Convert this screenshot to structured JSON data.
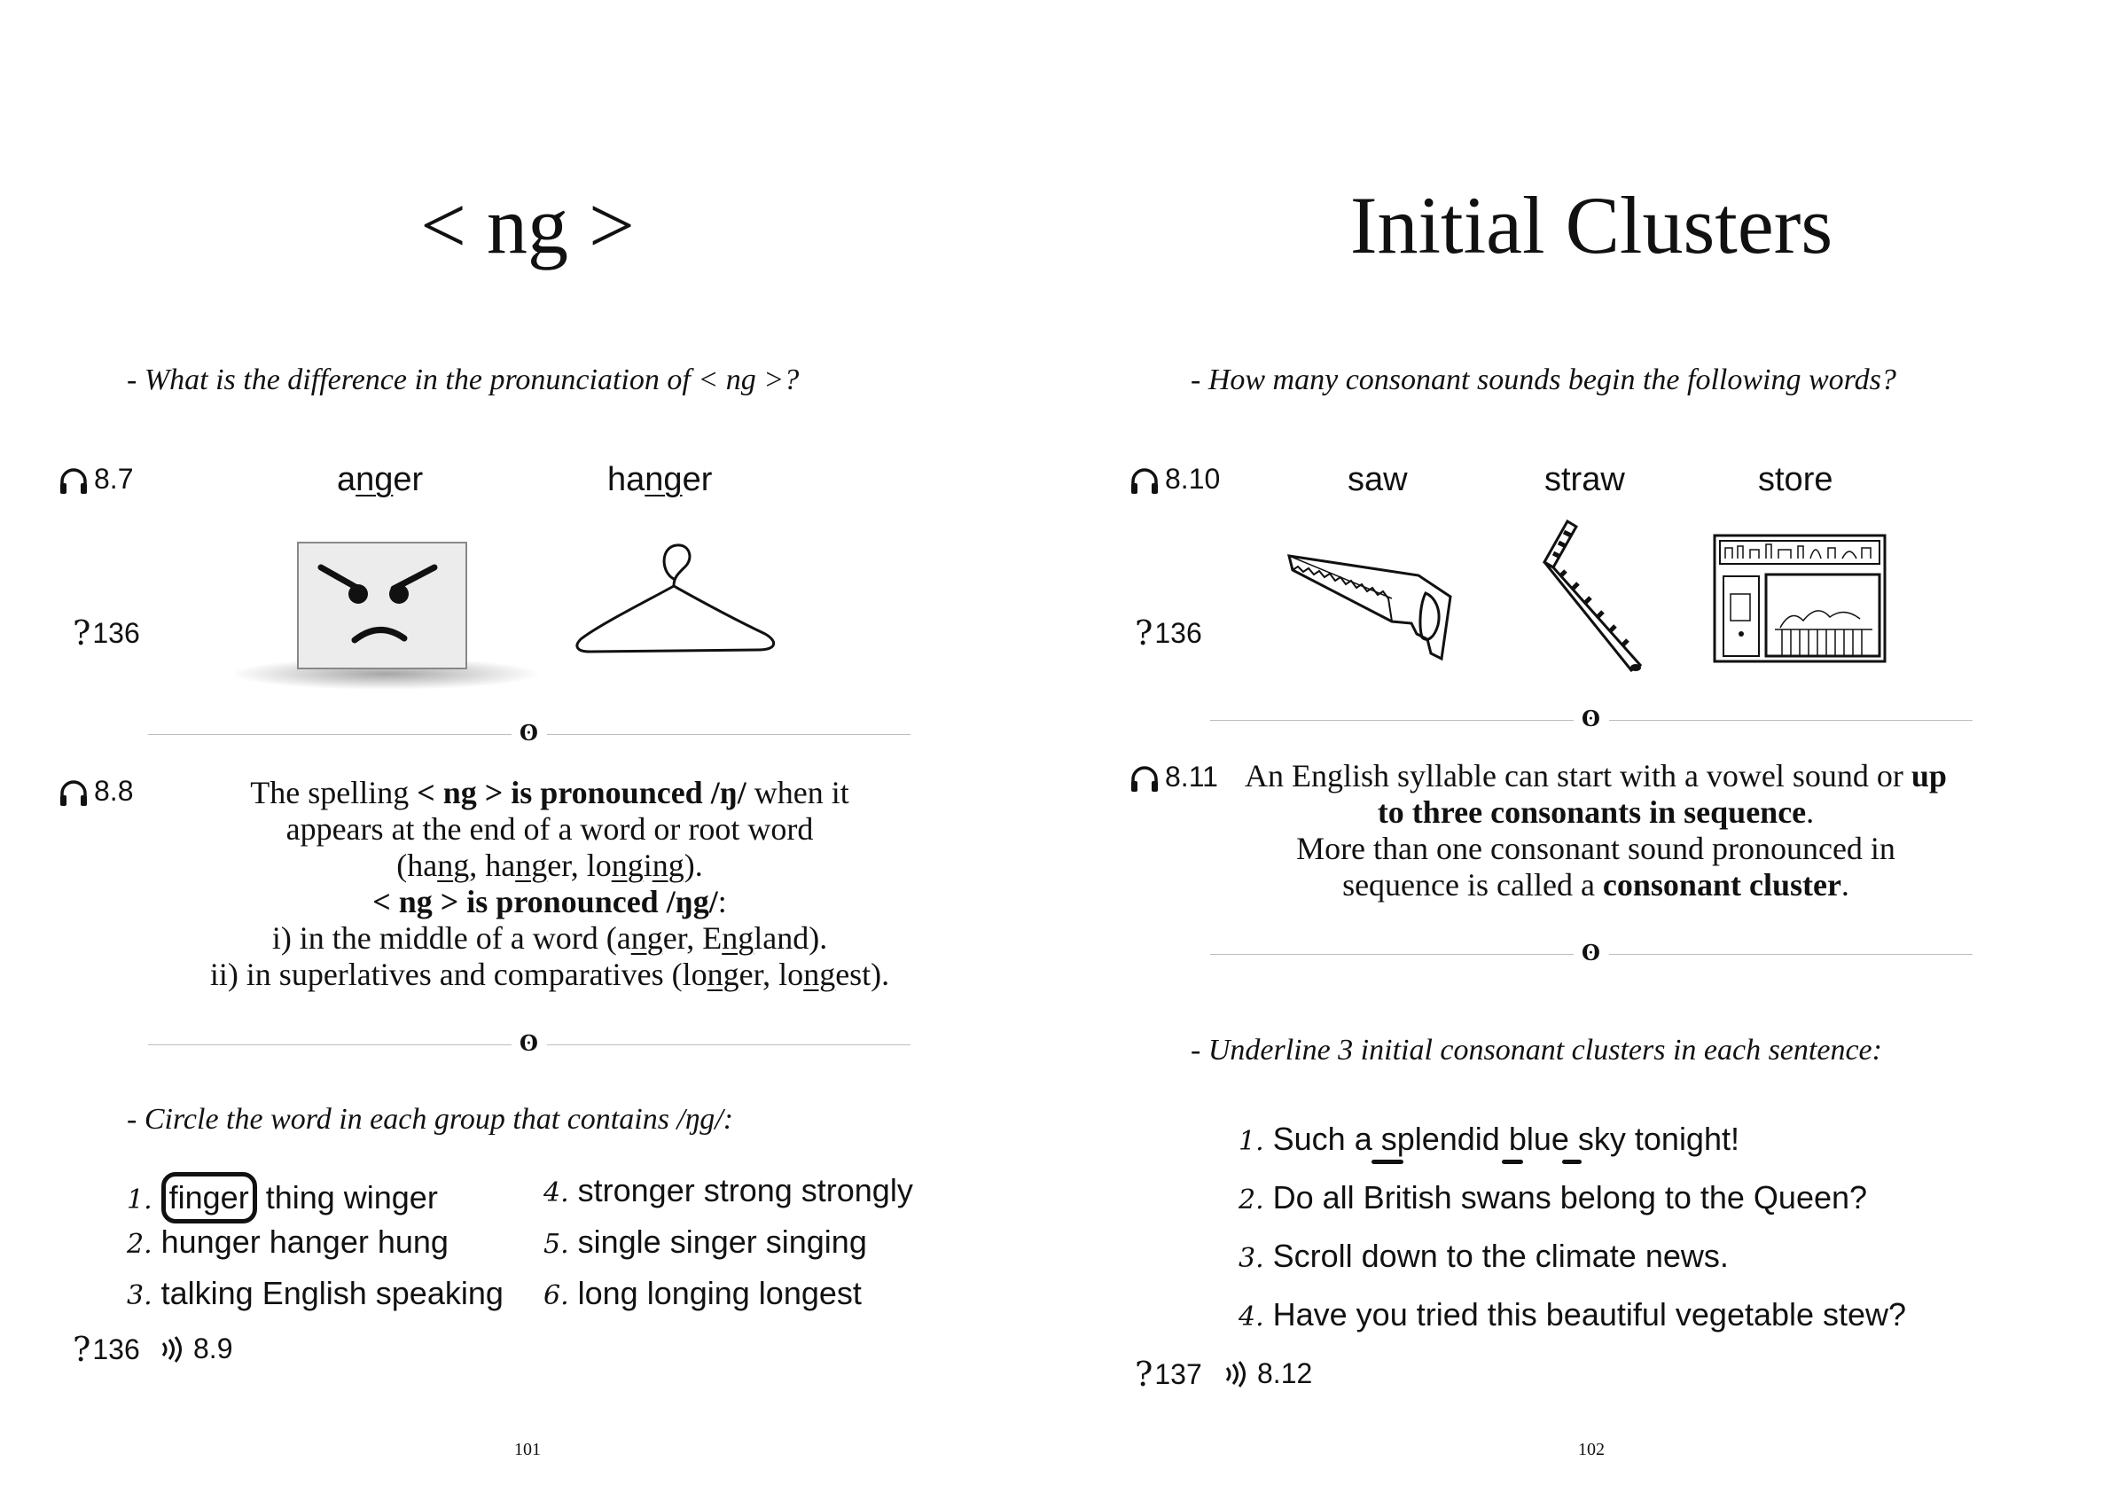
{
  "left_page": {
    "title": "< ng >",
    "instruction1": "- What is the difference in the pronunciation of < ng >?",
    "audio1": "8.7",
    "ref1": "136",
    "words": [
      {
        "pre": "a",
        "under": "ng",
        "post": "er"
      },
      {
        "pre": "ha",
        "under": "ng",
        "post": "er"
      }
    ],
    "images": [
      "angry-face-icon",
      "hanger-icon"
    ],
    "audio2": "8.8",
    "rule": {
      "l1_pre": "The spelling ",
      "l1_bold": "< ng > is pronounced /ŋ/",
      "l1_post": " when it",
      "l2": "appears at the end of a word or root word",
      "l3": [
        {
          "t": "(ha"
        },
        {
          "u": "ng"
        },
        {
          "t": ", ha"
        },
        {
          "u": "ng"
        },
        {
          "t": "er, lo"
        },
        {
          "u": "ng"
        },
        {
          "t": "i"
        },
        {
          "u": "ng"
        },
        {
          "t": ")."
        }
      ],
      "l4_bold": "< ng > is pronounced /ŋg/",
      "l4_post": ":",
      "l5": [
        {
          "t": "i) in the middle of a word (a"
        },
        {
          "u": "ng"
        },
        {
          "t": "er, E"
        },
        {
          "u": "ng"
        },
        {
          "t": "land)."
        }
      ],
      "l6": [
        {
          "t": "ii) in superlatives and comparatives (lo"
        },
        {
          "u": "ng"
        },
        {
          "t": "er, lo"
        },
        {
          "u": "ng"
        },
        {
          "t": "est)."
        }
      ]
    },
    "instruction2": "- Circle the word in each group that contains /ŋg/:",
    "exercises": [
      {
        "n": "1.",
        "circled": "finger",
        "rest": " thing winger"
      },
      {
        "n": "2.",
        "text": "hunger hanger hung"
      },
      {
        "n": "3.",
        "text": "talking English speaking"
      },
      {
        "n": "4.",
        "text": "stronger strong strongly"
      },
      {
        "n": "5.",
        "text": "single singer singing"
      },
      {
        "n": "6.",
        "text": "long longing longest"
      }
    ],
    "footer_ref": "136",
    "footer_audio": "8.9",
    "page_number": "101"
  },
  "right_page": {
    "title": "Initial Clusters",
    "instruction1": "- How many consonant sounds begin the following words?",
    "audio1": "8.10",
    "ref1": "136",
    "words": [
      "saw",
      "straw",
      "store"
    ],
    "images": [
      "saw-icon",
      "straw-icon",
      "store-icon"
    ],
    "audio2": "8.11",
    "rule": {
      "l1_pre": "An English syllable can start with a vowel sound or ",
      "l1_bold": "up",
      "l2_bold": "to three consonants in sequence",
      "l2_post": ".",
      "l3": "More than one consonant sound pronounced in",
      "l4_pre": "sequence is called a ",
      "l4_bold": "consonant cluster",
      "l4_post": "."
    },
    "instruction2": "- Underline 3 initial consonant clusters in each sentence:",
    "sentences": [
      {
        "n": "1.",
        "text": "Such a splendid blue sky tonight!"
      },
      {
        "n": "2.",
        "text": "Do all British swans belong to the Queen?"
      },
      {
        "n": "3.",
        "text": "Scroll down to the climate news."
      },
      {
        "n": "4.",
        "text": "Have you tried this beautiful vegetable stew?"
      }
    ],
    "footer_ref": "137",
    "footer_audio": "8.12",
    "page_number": "102"
  },
  "icons": {
    "headphones": "headphones-icon",
    "question": "question-mark-icon",
    "speaker": "speaker-waves-icon",
    "divider": "divider-ornament"
  },
  "colors": {
    "text": "#111111",
    "rule": "#bdbdbd",
    "face_bg": "#ececec"
  }
}
